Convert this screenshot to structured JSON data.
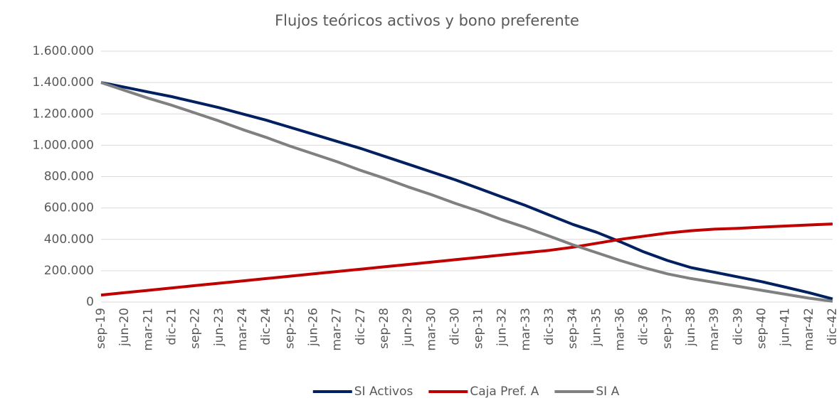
{
  "chart_data": {
    "type": "line",
    "title": "Flujos teóricos activos y bono preferente",
    "categories": [
      "sep-19",
      "jun-20",
      "mar-21",
      "dic-21",
      "sep-22",
      "jun-23",
      "mar-24",
      "dic-24",
      "sep-25",
      "jun-26",
      "mar-27",
      "dic-27",
      "sep-28",
      "jun-29",
      "mar-30",
      "dic-30",
      "sep-31",
      "jun-32",
      "mar-33",
      "dic-33",
      "sep-34",
      "jun-35",
      "mar-36",
      "dic-36",
      "sep-37",
      "jun-38",
      "mar-39",
      "dic-39",
      "sep-40",
      "jun-41",
      "mar-42",
      "dic-42"
    ],
    "series": [
      {
        "name": "SI Activos",
        "color": "#002060",
        "values": [
          1400000,
          1370000,
          1340000,
          1310000,
          1275000,
          1240000,
          1200000,
          1160000,
          1115000,
          1070000,
          1025000,
          980000,
          930000,
          880000,
          830000,
          780000,
          725000,
          670000,
          615000,
          555000,
          495000,
          445000,
          385000,
          320000,
          265000,
          220000,
          190000,
          160000,
          130000,
          95000,
          60000,
          20000
        ]
      },
      {
        "name": "Caja Pref. A",
        "color": "#c00000",
        "values": [
          45000,
          60000,
          75000,
          90000,
          105000,
          120000,
          135000,
          150000,
          165000,
          180000,
          195000,
          210000,
          225000,
          240000,
          255000,
          270000,
          285000,
          300000,
          315000,
          330000,
          350000,
          375000,
          400000,
          420000,
          440000,
          455000,
          465000,
          470000,
          478000,
          485000,
          492000,
          498000
        ]
      },
      {
        "name": "SI A",
        "color": "#808080",
        "values": [
          1400000,
          1350000,
          1300000,
          1255000,
          1205000,
          1155000,
          1100000,
          1050000,
          995000,
          945000,
          895000,
          840000,
          790000,
          735000,
          685000,
          630000,
          580000,
          525000,
          475000,
          420000,
          365000,
          315000,
          265000,
          220000,
          180000,
          150000,
          125000,
          100000,
          75000,
          50000,
          25000,
          5000
        ]
      }
    ],
    "ylim": [
      0,
      1600000
    ],
    "yticks": [
      {
        "value": 0,
        "label": "0"
      },
      {
        "value": 200000,
        "label": "200.000"
      },
      {
        "value": 400000,
        "label": "400.000"
      },
      {
        "value": 600000,
        "label": "600.000"
      },
      {
        "value": 800000,
        "label": "800.000"
      },
      {
        "value": 1000000,
        "label": "1.000.000"
      },
      {
        "value": 1200000,
        "label": "1.200.000"
      },
      {
        "value": 1400000,
        "label": "1.400.000"
      },
      {
        "value": 1600000,
        "label": "1.600.000"
      }
    ],
    "grid": true,
    "legend": "bottom"
  }
}
